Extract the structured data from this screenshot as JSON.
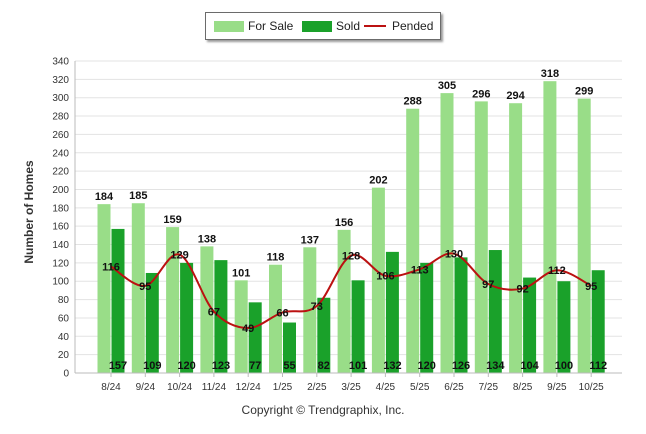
{
  "chart_data": {
    "type": "bar",
    "categories": [
      "8/24",
      "9/24",
      "10/24",
      "11/24",
      "12/24",
      "1/25",
      "2/25",
      "3/25",
      "4/25",
      "5/25",
      "6/25",
      "7/25",
      "8/25",
      "9/25",
      "10/25"
    ],
    "series": [
      {
        "name": "For Sale",
        "type": "bar",
        "color": "#99dd88",
        "values": [
          184,
          185,
          159,
          138,
          101,
          118,
          137,
          156,
          202,
          288,
          305,
          296,
          294,
          318,
          299
        ]
      },
      {
        "name": "Sold",
        "type": "bar",
        "color": "#1aa12a",
        "values": [
          157,
          109,
          120,
          123,
          77,
          55,
          82,
          101,
          132,
          120,
          126,
          134,
          104,
          100,
          112
        ]
      },
      {
        "name": "Pended",
        "type": "line",
        "color": "#bb1111",
        "values": [
          116,
          95,
          129,
          67,
          49,
          66,
          73,
          128,
          106,
          113,
          130,
          97,
          92,
          112,
          95
        ]
      }
    ],
    "ylabel": "Number of Homes",
    "xlabel": "",
    "ylim": [
      0,
      340
    ],
    "yticks": [
      0,
      20,
      40,
      60,
      80,
      100,
      120,
      140,
      160,
      180,
      200,
      220,
      240,
      260,
      280,
      300,
      320,
      340
    ],
    "legend": "top-center",
    "grid": true
  },
  "legend": {
    "for_sale": "For Sale",
    "sold": "Sold",
    "pended": "Pended"
  },
  "copyright": "Copyright © Trendgraphix, Inc."
}
